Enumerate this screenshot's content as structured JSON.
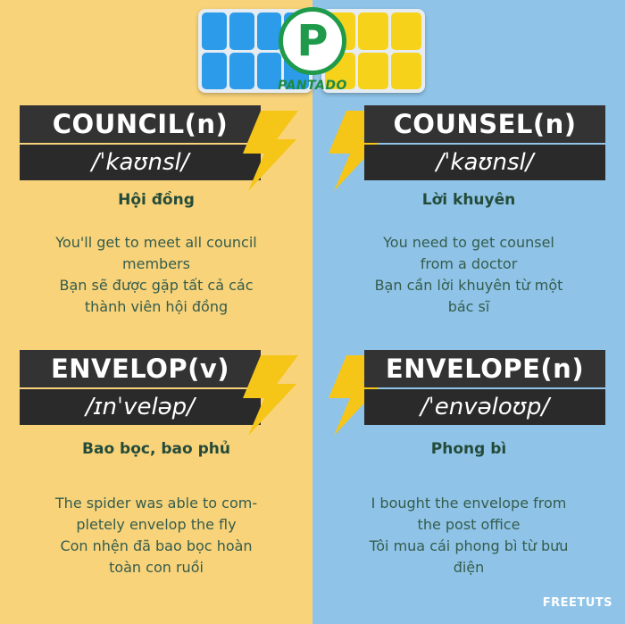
{
  "logo": {
    "letter": "P",
    "brand": "PANTADO"
  },
  "cards": [
    {
      "word": "COUNCIL(n)",
      "ipa": "/ˈkaʊnsl/",
      "meaning": "Hội đồng",
      "example": [
        "You'll get to meet all council",
        "members",
        "Bạn sẽ được gặp tất cả các",
        "thành viên hội đồng"
      ]
    },
    {
      "word": "COUNSEL(n)",
      "ipa": "/ˈkaʊnsl/",
      "meaning": "Lời khuyên",
      "example": [
        "You need to get counsel",
        "from a doctor",
        "Bạn cần lời khuyên từ một",
        "bác sĩ"
      ]
    },
    {
      "word": "ENVELOP(v)",
      "ipa": "/ɪnˈveləp/",
      "meaning": "Bao bọc, bao phủ",
      "example": [
        "The spider was able to com-",
        "pletely envelop the fly",
        "Con nhện đã bao bọc hoàn",
        "toàn con ruồi"
      ]
    },
    {
      "word": "ENVELOPE(n)",
      "ipa": "/ˈenvəloʊp/",
      "meaning": "Phong bì",
      "example": [
        "I bought the envelope from",
        "the post office",
        "Tôi mua cái phong bì từ bưu",
        "điện"
      ]
    }
  ],
  "watermark": "FREETUTS",
  "colors": {
    "left_bg": "#f8d37a",
    "right_bg": "#8fc4e8",
    "banner": "#333333",
    "bolt": "#f5c518",
    "heading_text": "#244b3a"
  },
  "icons": [
    "lightning-bolt-icon"
  ]
}
